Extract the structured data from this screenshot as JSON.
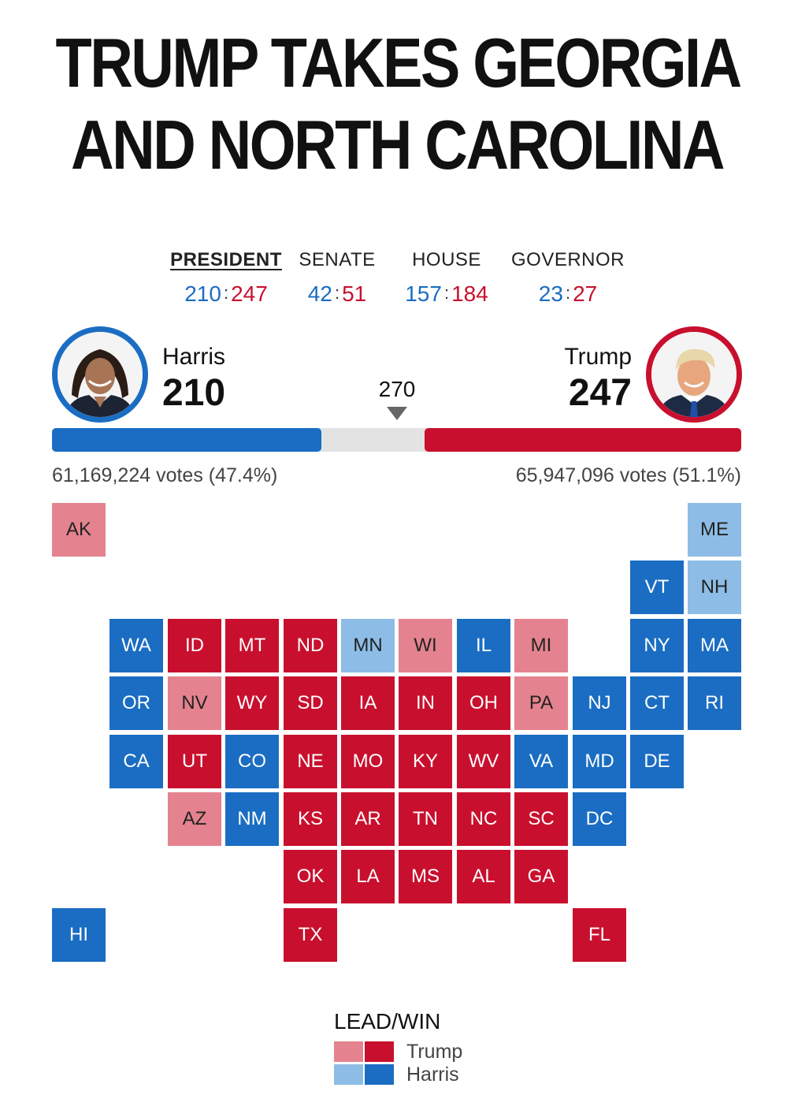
{
  "headline": [
    "TRUMP TAKES GEORGIA",
    "AND NORTH CAROLINA"
  ],
  "race_tabs": [
    {
      "label": "PRESIDENT",
      "harris": "210",
      "trump": "247",
      "active": true
    },
    {
      "label": "SENATE",
      "harris": "42",
      "trump": "51",
      "active": false
    },
    {
      "label": "HOUSE",
      "harris": "157",
      "trump": "184",
      "active": false
    },
    {
      "label": "GOVERNOR",
      "harris": "23",
      "trump": "27",
      "active": false
    }
  ],
  "score_separator": ":",
  "candidates": {
    "harris": {
      "name": "Harris",
      "electoral_votes": "210",
      "popular": "61,169,224 votes (47.4%)"
    },
    "trump": {
      "name": "Trump",
      "electoral_votes": "247",
      "popular": "65,947,096 votes (51.1%)"
    }
  },
  "threshold": "270",
  "electoral_total": 538,
  "colors": {
    "trump_win": "#c8102e",
    "trump_lead": "#e4838f",
    "harris_win": "#1a6dc2",
    "harris_lead": "#8dbde6",
    "track": "#e3e3e3"
  },
  "map_states": [
    {
      "abbr": "AK",
      "status": "trump_lead"
    },
    {
      "abbr": "ME",
      "status": "harris_lead"
    },
    {
      "abbr": "VT",
      "status": "harris_win"
    },
    {
      "abbr": "NH",
      "status": "harris_lead"
    },
    {
      "abbr": "WA",
      "status": "harris_win"
    },
    {
      "abbr": "ID",
      "status": "trump_win"
    },
    {
      "abbr": "MT",
      "status": "trump_win"
    },
    {
      "abbr": "ND",
      "status": "trump_win"
    },
    {
      "abbr": "MN",
      "status": "harris_lead"
    },
    {
      "abbr": "WI",
      "status": "trump_lead"
    },
    {
      "abbr": "IL",
      "status": "harris_win"
    },
    {
      "abbr": "MI",
      "status": "trump_lead"
    },
    {
      "abbr": "NY",
      "status": "harris_win"
    },
    {
      "abbr": "MA",
      "status": "harris_win"
    },
    {
      "abbr": "OR",
      "status": "harris_win"
    },
    {
      "abbr": "NV",
      "status": "trump_lead"
    },
    {
      "abbr": "WY",
      "status": "trump_win"
    },
    {
      "abbr": "SD",
      "status": "trump_win"
    },
    {
      "abbr": "IA",
      "status": "trump_win"
    },
    {
      "abbr": "IN",
      "status": "trump_win"
    },
    {
      "abbr": "OH",
      "status": "trump_win"
    },
    {
      "abbr": "PA",
      "status": "trump_lead"
    },
    {
      "abbr": "NJ",
      "status": "harris_win"
    },
    {
      "abbr": "CT",
      "status": "harris_win"
    },
    {
      "abbr": "RI",
      "status": "harris_win"
    },
    {
      "abbr": "CA",
      "status": "harris_win"
    },
    {
      "abbr": "UT",
      "status": "trump_win"
    },
    {
      "abbr": "CO",
      "status": "harris_win"
    },
    {
      "abbr": "NE",
      "status": "trump_win"
    },
    {
      "abbr": "MO",
      "status": "trump_win"
    },
    {
      "abbr": "KY",
      "status": "trump_win"
    },
    {
      "abbr": "WV",
      "status": "trump_win"
    },
    {
      "abbr": "VA",
      "status": "harris_win"
    },
    {
      "abbr": "MD",
      "status": "harris_win"
    },
    {
      "abbr": "DE",
      "status": "harris_win"
    },
    {
      "abbr": "AZ",
      "status": "trump_lead"
    },
    {
      "abbr": "NM",
      "status": "harris_win"
    },
    {
      "abbr": "KS",
      "status": "trump_win"
    },
    {
      "abbr": "AR",
      "status": "trump_win"
    },
    {
      "abbr": "TN",
      "status": "trump_win"
    },
    {
      "abbr": "NC",
      "status": "trump_win"
    },
    {
      "abbr": "SC",
      "status": "trump_win"
    },
    {
      "abbr": "DC",
      "status": "harris_win"
    },
    {
      "abbr": "OK",
      "status": "trump_win"
    },
    {
      "abbr": "LA",
      "status": "trump_win"
    },
    {
      "abbr": "MS",
      "status": "trump_win"
    },
    {
      "abbr": "AL",
      "status": "trump_win"
    },
    {
      "abbr": "GA",
      "status": "trump_win"
    },
    {
      "abbr": "HI",
      "status": "harris_win"
    },
    {
      "abbr": "TX",
      "status": "trump_win"
    },
    {
      "abbr": "FL",
      "status": "trump_win"
    }
  ],
  "legend": {
    "title": "LEAD/WIN",
    "trump_label": "Trump",
    "harris_label": "Harris"
  }
}
